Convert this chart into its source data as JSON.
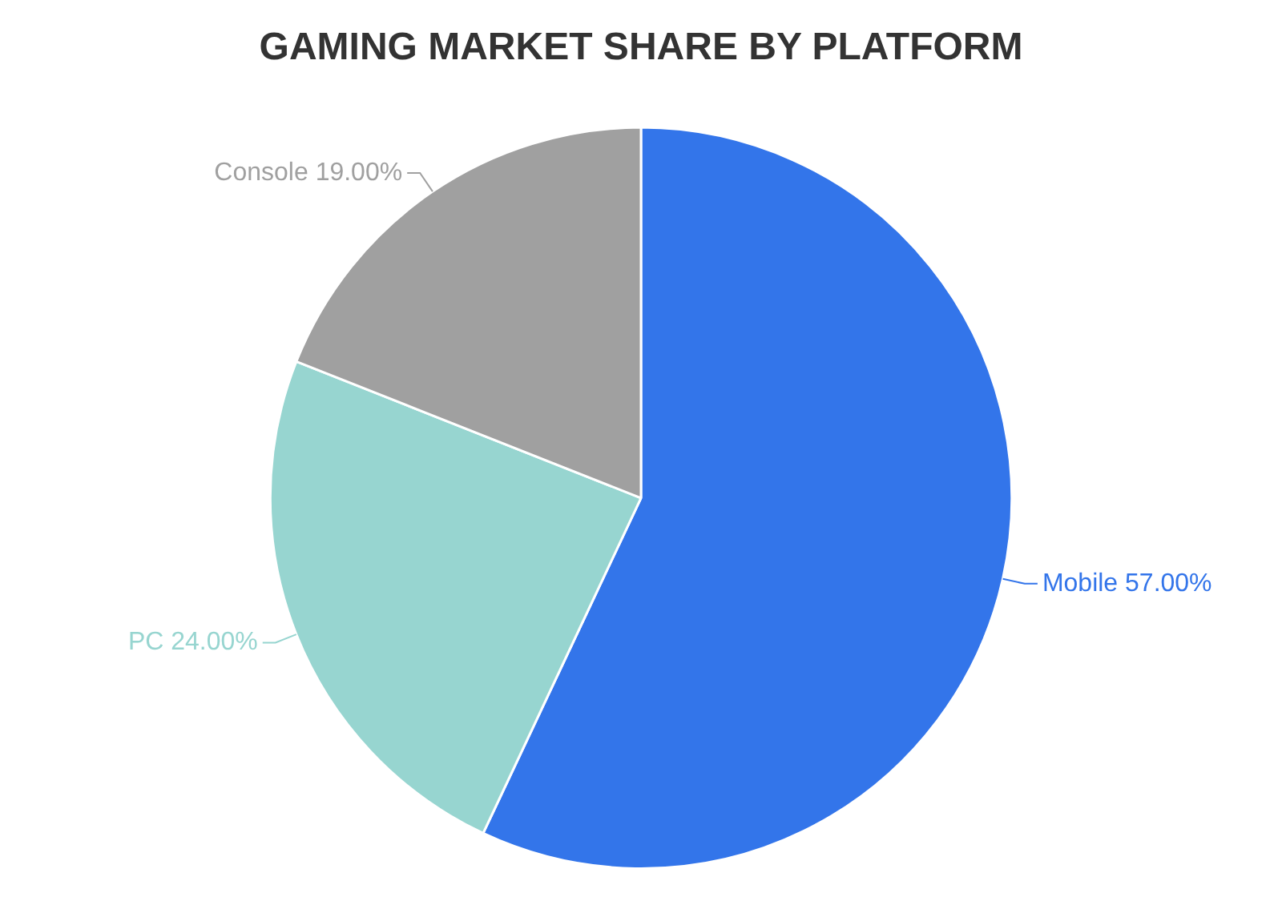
{
  "chart_data": {
    "type": "pie",
    "title": "GAMING MARKET SHARE BY PLATFORM",
    "categories": [
      "Mobile",
      "PC",
      "Console"
    ],
    "values": [
      57,
      24,
      19
    ],
    "value_labels": [
      "57.00%",
      "24.00%",
      "19.00%"
    ],
    "colors": [
      "#3375ea",
      "#97d5d0",
      "#a0a0a0"
    ],
    "legend": false
  }
}
